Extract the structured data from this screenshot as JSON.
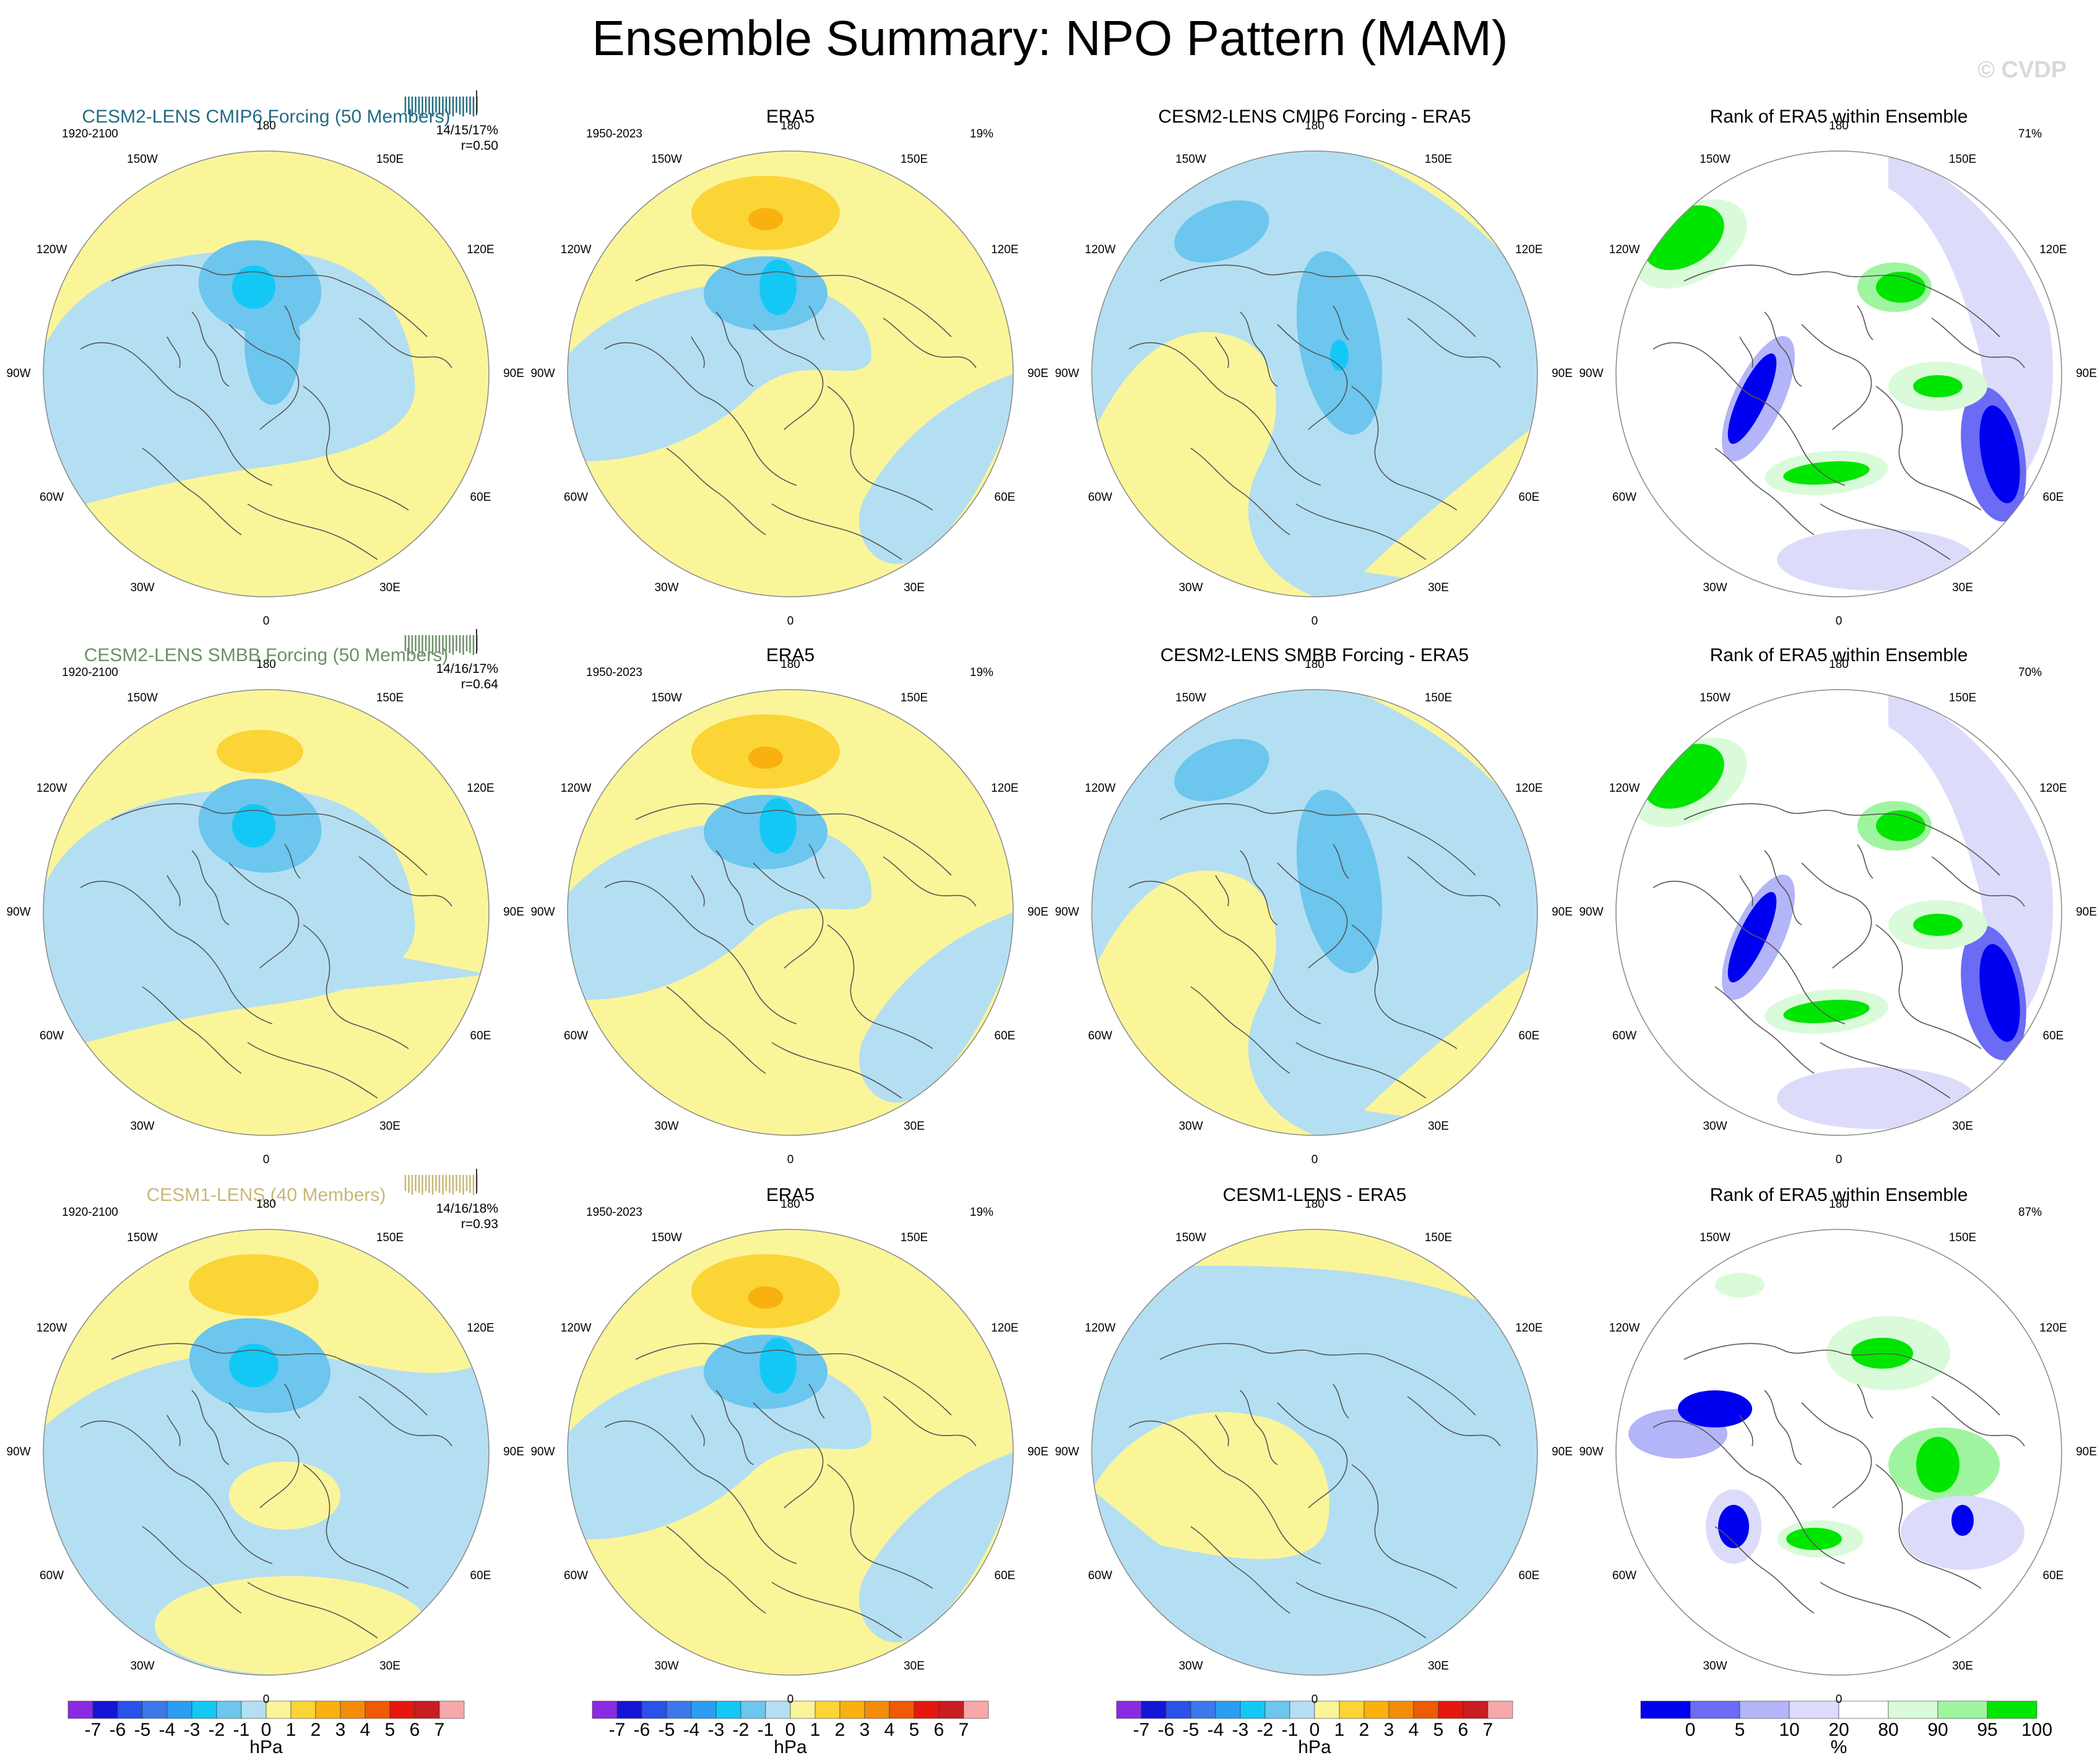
{
  "title": "Ensemble Summary: NPO Pattern (MAM)",
  "watermark": "© CVDP",
  "longitude_labels": [
    "180",
    "150E",
    "120E",
    "90E",
    "60E",
    "30E",
    "0",
    "30W",
    "60W",
    "90W",
    "120W",
    "150W"
  ],
  "rows": [
    {
      "model": {
        "title": "CESM2-LENS CMIP6 Forcing (50 Members)",
        "title_color": "#236d84",
        "period": "1920-2100",
        "stats_line1": "14/15/17%",
        "stats_line2": "r=0.50"
      },
      "obs": {
        "title": "ERA5",
        "period": "1950-2023",
        "percent": "19%"
      },
      "diff": {
        "title": "CESM2-LENS CMIP6 Forcing - ERA5"
      },
      "rank": {
        "title": "Rank of ERA5 within Ensemble",
        "percent": "71%"
      }
    },
    {
      "model": {
        "title": "CESM2-LENS SMBB Forcing (50 Members)",
        "title_color": "#6f8f6a",
        "period": "1920-2100",
        "stats_line1": "14/16/17%",
        "stats_line2": "r=0.64"
      },
      "obs": {
        "title": "ERA5",
        "period": "1950-2023",
        "percent": "19%"
      },
      "diff": {
        "title": "CESM2-LENS SMBB Forcing - ERA5"
      },
      "rank": {
        "title": "Rank of ERA5 within Ensemble",
        "percent": "70%"
      }
    },
    {
      "model": {
        "title": "CESM1-LENS (40 Members)",
        "title_color": "#c9b778",
        "period": "1920-2100",
        "stats_line1": "14/16/18%",
        "stats_line2": "r=0.93"
      },
      "obs": {
        "title": "ERA5",
        "period": "1950-2023",
        "percent": "19%"
      },
      "diff": {
        "title": "CESM1-LENS - ERA5"
      },
      "rank": {
        "title": "Rank of ERA5 within Ensemble",
        "percent": "87%"
      }
    }
  ],
  "colorbar_hpa": {
    "unit": "hPa",
    "tick_labels": [
      "-7",
      "-6",
      "-5",
      "-4",
      "-3",
      "-2",
      "-1",
      "0",
      "1",
      "2",
      "3",
      "4",
      "5",
      "6",
      "7"
    ],
    "colors": [
      "#8a2be2",
      "#1515d6",
      "#2a52e8",
      "#3b78ea",
      "#2b9df2",
      "#14c8f6",
      "#6cc6ee",
      "#b4dff2",
      "#fbf59a",
      "#fbd436",
      "#f8b10f",
      "#f28c0a",
      "#ee5a05",
      "#e6170e",
      "#c81d22",
      "#f7a9aa"
    ]
  },
  "colorbar_rank": {
    "unit": "%",
    "tick_labels": [
      "0",
      "5",
      "10",
      "20",
      "80",
      "90",
      "95",
      "100"
    ],
    "colors": [
      "#0000f0",
      "#6b6bf5",
      "#b4b4f8",
      "#dcdcfa",
      "#ffffff",
      "#d9fbd9",
      "#9ff59f",
      "#00e600"
    ]
  }
}
